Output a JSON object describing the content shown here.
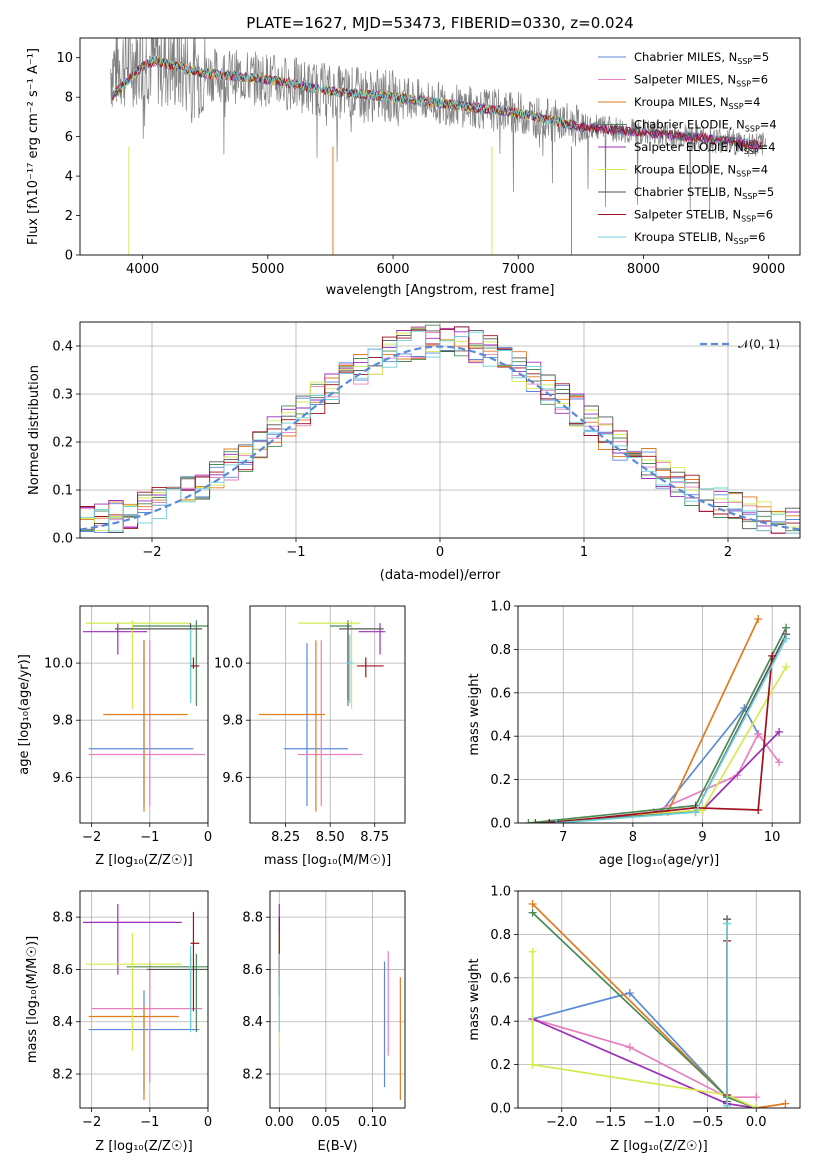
{
  "figure": {
    "title": "PLATE=1627, MJD=53473, FIBERID=0330, z=0.024"
  },
  "colors": {
    "Chabrier MILES": "#5b8bd8",
    "Salpeter MILES": "#e87fbf",
    "Kroupa MILES": "#e07b20",
    "Chabrier ELODIE": "#4c8a55",
    "Salpeter ELODIE": "#9b2fb8",
    "Kroupa ELODIE": "#d6ea50",
    "Chabrier STELIB": "#555555",
    "Salpeter STELIB": "#a0101e",
    "Kroupa STELIB": "#6fd0d8"
  },
  "chart_data": [
    {
      "id": "spectrum",
      "type": "line",
      "xlabel": "wavelength [Angstrom, rest frame]",
      "ylabel": "Flux [fλ10⁻¹⁷ erg cm⁻² s⁻¹ A⁻¹]",
      "xlim": [
        3500,
        9250
      ],
      "ylim": [
        0,
        11
      ],
      "xticks": [
        4000,
        5000,
        6000,
        7000,
        8000,
        9000
      ],
      "yticks": [
        0,
        2,
        4,
        6,
        8,
        10
      ],
      "continuum_approx": {
        "x": [
          3750,
          4000,
          4500,
          5000,
          5500,
          6000,
          6500,
          7000,
          7500,
          8000,
          8500,
          9000
        ],
        "y": [
          9.5,
          10.0,
          9.2,
          8.9,
          8.3,
          8.0,
          7.6,
          7.2,
          6.5,
          6.2,
          5.9,
          5.5
        ]
      },
      "legend": [
        {
          "label": "Chabrier MILES, N",
          "sub": "SSP",
          "post": "=5"
        },
        {
          "label": "Salpeter MILES, N",
          "sub": "SSP",
          "post": "=6"
        },
        {
          "label": "Kroupa MILES, N",
          "sub": "SSP",
          "post": "=4"
        },
        {
          "label": "Chabrier ELODIE, N",
          "sub": "SSP",
          "post": "=4"
        },
        {
          "label": "Salpeter ELODIE, N",
          "sub": "SSP",
          "post": "=4"
        },
        {
          "label": "Kroupa ELODIE, N",
          "sub": "SSP",
          "post": "=4"
        },
        {
          "label": "Chabrier STELIB, N",
          "sub": "SSP",
          "post": "=5"
        },
        {
          "label": "Salpeter STELIB, N",
          "sub": "SSP",
          "post": "=6"
        },
        {
          "label": "Kroupa STELIB, N",
          "sub": "SSP",
          "post": "=6"
        }
      ]
    },
    {
      "id": "residuals",
      "type": "bar",
      "xlabel": "(data-model)/error",
      "ylabel": "Normed distribution",
      "xlim": [
        -2.5,
        2.5
      ],
      "ylim": [
        0,
        0.45
      ],
      "xticks": [
        -2,
        -1,
        0,
        1,
        2
      ],
      "yticks": [
        0.0,
        0.1,
        0.2,
        0.3,
        0.4
      ],
      "grid": true,
      "legend": "𝒩(0, 1)",
      "gaussian": {
        "mu": 0,
        "sigma": 1
      }
    },
    {
      "id": "age_vs_Z",
      "type": "scatter",
      "xlabel": "Z [log₁₀(Z/Z☉)]",
      "ylabel": "age  [log₁₀(age/yr)]",
      "xlim": [
        -2.2,
        0
      ],
      "ylim": [
        9.44,
        10.2
      ],
      "xticks": [
        -2,
        -1,
        0
      ],
      "yticks": [
        9.6,
        9.8,
        10.0
      ],
      "grid": true,
      "points": [
        {
          "model": "Chabrier MILES",
          "x": -1.1,
          "xerr": [
            0.95,
            0.85
          ],
          "y": 9.7,
          "yerr": [
            0.2,
            0.38
          ]
        },
        {
          "model": "Salpeter MILES",
          "x": -1.0,
          "xerr": [
            1.05,
            0.95
          ],
          "y": 9.68,
          "yerr": [
            0.18,
            0.4
          ]
        },
        {
          "model": "Kroupa MILES",
          "x": -1.1,
          "xerr": [
            0.7,
            0.75
          ],
          "y": 9.82,
          "yerr": [
            0.34,
            0.26
          ]
        },
        {
          "model": "Chabrier ELODIE",
          "x": -0.2,
          "xerr": [
            1.1,
            0.2
          ],
          "y": 10.13,
          "yerr": [
            0.28,
            0.02
          ]
        },
        {
          "model": "Salpeter ELODIE",
          "x": -1.55,
          "xerr": [
            0.6,
            0.5
          ],
          "y": 10.11,
          "yerr": [
            0.08,
            0.03
          ]
        },
        {
          "model": "Kroupa ELODIE",
          "x": -1.3,
          "xerr": [
            0.8,
            1.0
          ],
          "y": 10.14,
          "yerr": [
            0.3,
            0.01
          ]
        },
        {
          "model": "Chabrier STELIB",
          "x": -0.3,
          "xerr": [
            1.3,
            0.2
          ],
          "y": 10.12,
          "yerr": [
            0.25,
            0.02
          ]
        },
        {
          "model": "Salpeter STELIB",
          "x": -0.25,
          "xerr": [
            0.05,
            0.1
          ],
          "y": 9.99,
          "yerr": [
            0.01,
            0.03
          ]
        },
        {
          "model": "Kroupa STELIB",
          "x": -0.3,
          "xerr": [
            0.02,
            0.02
          ],
          "y": 10.0,
          "yerr": [
            0.14,
            0.12
          ]
        }
      ]
    },
    {
      "id": "age_vs_mass",
      "type": "scatter",
      "xlabel": "mass [log₁₀(M/M☉)]",
      "ylabel": "",
      "xlim": [
        8.05,
        8.92
      ],
      "ylim": [
        9.44,
        10.2
      ],
      "xticks": [
        8.25,
        8.5,
        8.75
      ],
      "yticks": [
        9.6,
        9.8,
        10.0
      ],
      "grid": true,
      "points": [
        {
          "model": "Chabrier MILES",
          "x": 8.37,
          "xerr": [
            0.13,
            0.23
          ],
          "y": 9.7,
          "yerr": [
            0.2,
            0.37
          ]
        },
        {
          "model": "Salpeter MILES",
          "x": 8.45,
          "xerr": [
            0.13,
            0.23
          ],
          "y": 9.68,
          "yerr": [
            0.18,
            0.4
          ]
        },
        {
          "model": "Kroupa MILES",
          "x": 8.42,
          "xerr": [
            0.32,
            0.05
          ],
          "y": 9.82,
          "yerr": [
            0.34,
            0.26
          ]
        },
        {
          "model": "Chabrier ELODIE",
          "x": 8.6,
          "xerr": [
            0.1,
            0.02
          ],
          "y": 10.13,
          "yerr": [
            0.28,
            0.02
          ]
        },
        {
          "model": "Salpeter ELODIE",
          "x": 8.78,
          "xerr": [
            0.12,
            0.03
          ],
          "y": 10.11,
          "yerr": [
            0.08,
            0.03
          ]
        },
        {
          "model": "Kroupa ELODIE",
          "x": 8.62,
          "xerr": [
            0.3,
            0.05
          ],
          "y": 10.14,
          "yerr": [
            0.3,
            0.01
          ]
        },
        {
          "model": "Chabrier STELIB",
          "x": 8.6,
          "xerr": [
            0.05,
            0.2
          ],
          "y": 10.12,
          "yerr": [
            0.25,
            0.02
          ]
        },
        {
          "model": "Salpeter STELIB",
          "x": 8.7,
          "xerr": [
            0.05,
            0.1
          ],
          "y": 9.99,
          "yerr": [
            0.04,
            0.03
          ]
        },
        {
          "model": "Kroupa STELIB",
          "x": 8.61,
          "xerr": [
            0.02,
            0.02
          ],
          "y": 10.0,
          "yerr": [
            0.14,
            0.1
          ]
        }
      ]
    },
    {
      "id": "mass_weight_vs_age",
      "type": "line",
      "xlabel": "age  [log₁₀(age/yr)]",
      "ylabel": "mass weight",
      "xlim": [
        6.35,
        10.4
      ],
      "ylim": [
        0,
        1
      ],
      "xticks": [
        7,
        8,
        9,
        10
      ],
      "yticks": [
        0.0,
        0.2,
        0.4,
        0.6,
        0.8,
        1.0
      ],
      "grid": true,
      "series": [
        {
          "model": "Chabrier MILES",
          "x": [
            8.4,
            9.6,
            9.8
          ],
          "y": [
            0.05,
            0.53,
            0.41
          ]
        },
        {
          "model": "Salpeter MILES",
          "x": [
            8.3,
            9.5,
            9.8,
            10.1
          ],
          "y": [
            0.05,
            0.22,
            0.41,
            0.28
          ]
        },
        {
          "model": "Kroupa MILES",
          "x": [
            8.5,
            9.8
          ],
          "y": [
            0.05,
            0.94
          ]
        },
        {
          "model": "Chabrier ELODIE",
          "x": [
            6.5,
            8.9,
            10.2
          ],
          "y": [
            0.0,
            0.08,
            0.9
          ]
        },
        {
          "model": "Salpeter ELODIE",
          "x": [
            6.8,
            9.0,
            10.1
          ],
          "y": [
            0.0,
            0.06,
            0.42
          ]
        },
        {
          "model": "Kroupa ELODIE",
          "x": [
            6.6,
            9.0,
            10.2
          ],
          "y": [
            0.0,
            0.06,
            0.72
          ]
        },
        {
          "model": "Chabrier STELIB",
          "x": [
            6.6,
            8.9,
            10.2
          ],
          "y": [
            0.0,
            0.05,
            0.87
          ]
        },
        {
          "model": "Salpeter STELIB",
          "x": [
            6.8,
            8.9,
            9.8,
            10.0
          ],
          "y": [
            0.0,
            0.07,
            0.06,
            0.77
          ]
        },
        {
          "model": "Kroupa STELIB",
          "x": [
            6.9,
            8.9,
            10.2
          ],
          "y": [
            0.0,
            0.05,
            0.85
          ]
        }
      ]
    },
    {
      "id": "mass_vs_Z",
      "type": "scatter",
      "xlabel": "Z [log₁₀(Z/Z☉)]",
      "ylabel": "mass [log₁₀(M/M☉)]",
      "xlim": [
        -2.2,
        0
      ],
      "ylim": [
        8.07,
        8.9
      ],
      "xticks": [
        -2,
        -1,
        0
      ],
      "yticks": [
        8.2,
        8.4,
        8.6,
        8.8
      ],
      "grid": true,
      "points": [
        {
          "model": "Chabrier MILES",
          "x": -1.1,
          "xerr": [
            0.95,
            0.95
          ],
          "y": 8.37,
          "yerr": [
            0.24,
            0.15
          ]
        },
        {
          "model": "Salpeter MILES",
          "x": -1.0,
          "xerr": [
            1.0,
            0.9
          ],
          "y": 8.45,
          "yerr": [
            0.28,
            0.18
          ]
        },
        {
          "model": "Kroupa MILES",
          "x": -1.1,
          "xerr": [
            0.95,
            0.6
          ],
          "y": 8.42,
          "yerr": [
            0.32,
            0.04
          ]
        },
        {
          "model": "Chabrier ELODIE",
          "x": -0.2,
          "xerr": [
            1.2,
            0.2
          ],
          "y": 8.61,
          "yerr": [
            0.25,
            0.05
          ]
        },
        {
          "model": "Salpeter ELODIE",
          "x": -1.55,
          "xerr": [
            0.6,
            1.1
          ],
          "y": 8.78,
          "yerr": [
            0.2,
            0.07
          ]
        },
        {
          "model": "Kroupa ELODIE",
          "x": -1.3,
          "xerr": [
            0.8,
            0.85
          ],
          "y": 8.62,
          "yerr": [
            0.33,
            0.12
          ]
        },
        {
          "model": "Chabrier STELIB",
          "x": -0.3,
          "xerr": [
            0.75,
            0.3
          ],
          "y": 8.6,
          "yerr": [
            0.23,
            0.06
          ]
        },
        {
          "model": "Salpeter STELIB",
          "x": -0.25,
          "xerr": [
            0.05,
            0.1
          ],
          "y": 8.7,
          "yerr": [
            0.26,
            0.12
          ]
        },
        {
          "model": "Kroupa STELIB",
          "x": -0.3,
          "xerr": [
            0.02,
            0.02
          ],
          "y": 8.61,
          "yerr": [
            0.25,
            0.08
          ]
        }
      ]
    },
    {
      "id": "mass_vs_ebv",
      "type": "scatter",
      "xlabel": "E(B-V)",
      "ylabel": "",
      "xlim": [
        -0.01,
        0.135
      ],
      "ylim": [
        8.07,
        8.9
      ],
      "xticks": [
        0.0,
        0.05,
        0.1
      ],
      "yticks": [
        8.2,
        8.4,
        8.6,
        8.8
      ],
      "grid": true,
      "points": [
        {
          "model": "Chabrier MILES",
          "x": 0.113,
          "y": 8.37,
          "yerr": [
            0.22,
            0.26
          ]
        },
        {
          "model": "Salpeter MILES",
          "x": 0.117,
          "y": 8.45,
          "yerr": [
            0.18,
            0.22
          ]
        },
        {
          "model": "Kroupa MILES",
          "x": 0.13,
          "y": 8.42,
          "yerr": [
            0.32,
            0.15
          ]
        },
        {
          "model": "Chabrier ELODIE",
          "x": 0.0,
          "y": 8.61,
          "yerr": [
            0.18,
            0.05
          ]
        },
        {
          "model": "Salpeter ELODIE",
          "x": 0.0,
          "y": 8.78,
          "yerr": [
            0.16,
            0.07
          ]
        },
        {
          "model": "Kroupa ELODIE",
          "x": 0.0,
          "y": 8.62,
          "yerr": [
            0.32,
            0.12
          ]
        },
        {
          "model": "Chabrier STELIB",
          "x": 0.0,
          "y": 8.6,
          "yerr": [
            0.1,
            0.06
          ]
        },
        {
          "model": "Salpeter STELIB",
          "x": 0.0,
          "y": 8.7,
          "yerr": [
            0.13,
            0.1
          ]
        },
        {
          "model": "Kroupa STELIB",
          "x": 0.0,
          "y": 8.61,
          "yerr": [
            0.25,
            0.05
          ]
        }
      ]
    },
    {
      "id": "mass_weight_vs_Z",
      "type": "line",
      "xlabel": "Z [log₁₀(Z/Z☉)]",
      "ylabel": "mass weight",
      "xlim": [
        -2.45,
        0.45
      ],
      "ylim": [
        0,
        1
      ],
      "xticks": [
        -2.0,
        -1.5,
        -1.0,
        -0.5,
        0.0
      ],
      "yticks": [
        0.0,
        0.2,
        0.4,
        0.6,
        0.8,
        1.0
      ],
      "grid": true,
      "series": [
        {
          "model": "Chabrier MILES",
          "x": [
            -2.3,
            -1.3,
            -0.3,
            0.0
          ],
          "y": [
            0.41,
            0.53,
            0.05,
            0.0
          ]
        },
        {
          "model": "Salpeter MILES",
          "x": [
            -2.3,
            -1.3,
            -0.3,
            0.0
          ],
          "y": [
            0.41,
            0.28,
            0.05,
            0.05
          ]
        },
        {
          "model": "Kroupa MILES",
          "x": [
            -2.3,
            -0.3,
            0.0,
            0.3
          ],
          "y": [
            0.94,
            0.05,
            0.0,
            0.02
          ]
        },
        {
          "model": "Chabrier ELODIE",
          "x": [
            -2.3,
            -0.3,
            0.0
          ],
          "y": [
            0.9,
            0.05,
            0.0
          ]
        },
        {
          "model": "Salpeter ELODIE",
          "x": [
            -2.3,
            -0.3,
            0.0
          ],
          "y": [
            0.41,
            0.02,
            0.0
          ]
        },
        {
          "model": "Kroupa ELODIE",
          "x": [
            -2.3,
            -2.3,
            -0.3,
            0.0
          ],
          "y": [
            0.72,
            0.2,
            0.06,
            0.0
          ]
        },
        {
          "model": "Chabrier STELIB",
          "x": [
            -0.3,
            -0.3
          ],
          "y": [
            0.87,
            0.03
          ]
        },
        {
          "model": "Salpeter STELIB",
          "x": [
            -0.3,
            -0.3
          ],
          "y": [
            0.77,
            0.06
          ]
        },
        {
          "model": "Kroupa STELIB",
          "x": [
            -0.3,
            -0.3
          ],
          "y": [
            0.85,
            0.01
          ]
        }
      ]
    }
  ]
}
